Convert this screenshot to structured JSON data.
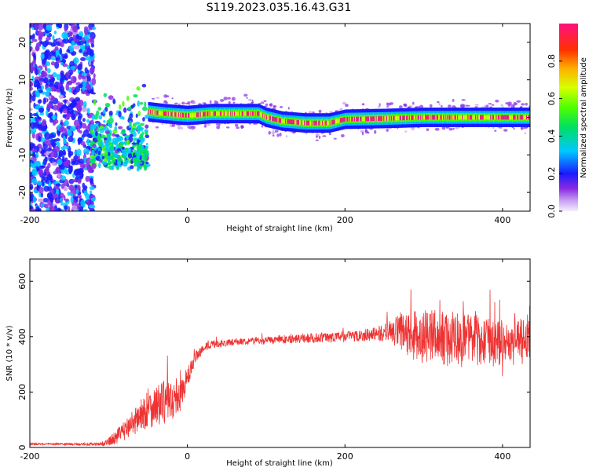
{
  "figure_title": "S119.2023.035.16.43.G31",
  "chart_data": [
    {
      "type": "heatmap",
      "title": "",
      "xlabel": "Height of straight line (km)",
      "ylabel": "Frequency (Hz)",
      "xlim": [
        -200,
        435
      ],
      "ylim": [
        -25,
        25
      ],
      "x_ticks": [
        -200,
        0,
        200,
        400
      ],
      "y_ticks": [
        20,
        10,
        0,
        -10,
        -20
      ],
      "colorbar": {
        "label": "Normalized spectral amplitude",
        "range": [
          0,
          1
        ],
        "ticks": [
          "0.0",
          "0.2",
          "0.4",
          "0.6",
          "0.8"
        ],
        "tick_values": [
          0.0,
          0.2,
          0.4,
          0.6,
          0.8
        ]
      },
      "regions": [
        {
          "x_range": [
            -200,
            -120
          ],
          "freq_range": [
            -25,
            25
          ],
          "amplitude": 0.25,
          "description_of_pattern": "noise"
        },
        {
          "x_range": [
            -120,
            -50
          ],
          "freq_range": [
            -12,
            8
          ],
          "amplitude": 0.45
        },
        {
          "x_range": [
            -50,
            100
          ],
          "freq_center": 1,
          "amplitude": 0.95
        },
        {
          "x_range": [
            100,
            200
          ],
          "freq_center": -1.5,
          "amplitude": 0.9
        },
        {
          "x_range": [
            200,
            435
          ],
          "freq_center": 0,
          "amplitude": 0.95
        }
      ],
      "ridge": {
        "x": [
          -50,
          -30,
          0,
          30,
          60,
          90,
          100,
          120,
          150,
          180,
          200,
          250,
          300,
          350,
          400,
          435
        ],
        "freq": [
          1.5,
          1.0,
          0.5,
          1.0,
          1.0,
          1.0,
          0.0,
          -1.0,
          -1.5,
          -1.5,
          -0.5,
          -0.3,
          0.0,
          0.0,
          0.0,
          0.0
        ]
      }
    },
    {
      "type": "line",
      "title": "",
      "xlabel": "Height of straight line (km)",
      "ylabel": "SNR (10 * v/v)",
      "xlim": [
        -200,
        435
      ],
      "ylim": [
        0,
        680
      ],
      "x_ticks": [
        -200,
        0,
        200,
        400
      ],
      "y_ticks": [
        0,
        200,
        400,
        600
      ],
      "series": [
        {
          "color": "#ee3333",
          "x": [
            -200,
            -150,
            -110,
            -100,
            -90,
            -80,
            -70,
            -60,
            -50,
            -40,
            -30,
            -20,
            -10,
            0,
            10,
            20,
            30,
            40,
            60,
            80,
            100,
            120,
            140,
            160,
            180,
            200,
            220,
            240,
            260,
            270,
            280,
            300,
            320,
            340,
            360,
            380,
            400,
            420,
            435
          ],
          "y": [
            12,
            12,
            12,
            20,
            40,
            60,
            90,
            110,
            140,
            150,
            160,
            170,
            180,
            250,
            320,
            360,
            370,
            375,
            380,
            385,
            385,
            390,
            392,
            395,
            398,
            400,
            405,
            410,
            420,
            410,
            400,
            400,
            395,
            390,
            385,
            380,
            385,
            380,
            385
          ],
          "amplitude": [
            4,
            4,
            6,
            15,
            25,
            35,
            45,
            60,
            70,
            75,
            80,
            70,
            60,
            40,
            25,
            15,
            15,
            12,
            12,
            12,
            14,
            15,
            16,
            17,
            18,
            20,
            22,
            25,
            40,
            80,
            90,
            100,
            100,
            100,
            100,
            90,
            90,
            85,
            80
          ]
        }
      ]
    }
  ]
}
